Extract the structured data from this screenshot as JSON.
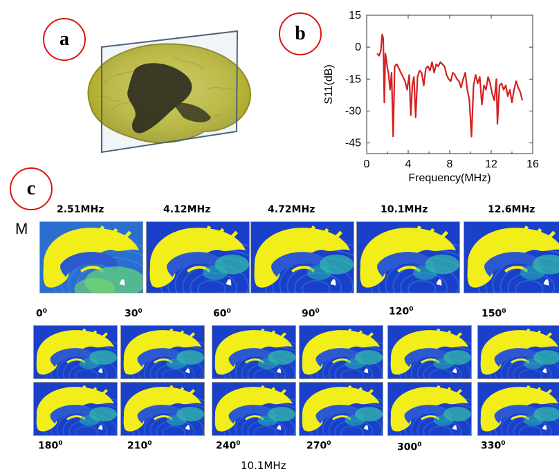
{
  "labels": {
    "a": "a",
    "b": "b",
    "c": "c"
  },
  "row_label": "M",
  "bottom_caption": "10.1MHz",
  "frequencies": [
    "2.51MHz",
    "4.12MHz",
    "4.72MHz",
    "10.1MHz",
    "12.6MHz"
  ],
  "angles_top": [
    {
      "num": "0",
      "deg": "0"
    },
    {
      "num": "30",
      "deg": "0"
    },
    {
      "num": "60",
      "deg": "0"
    },
    {
      "num": "90",
      "deg": "0"
    },
    {
      "num": "120",
      "deg": "0"
    },
    {
      "num": "150",
      "deg": "0"
    }
  ],
  "angles_bottom": [
    {
      "num": "180",
      "deg": "0"
    },
    {
      "num": "210",
      "deg": "0"
    },
    {
      "num": "240",
      "deg": "0"
    },
    {
      "num": "270",
      "deg": "0"
    },
    {
      "num": "300",
      "deg": "0"
    },
    {
      "num": "330",
      "deg": "0"
    }
  ],
  "colors": {
    "circle": "#e01010",
    "line": "#d42020",
    "field_bg": "#1a3fc8",
    "tissue": "#f2ee1a"
  },
  "chart_data": {
    "type": "line",
    "xlabel": "Frequency(MHz)",
    "ylabel": "S11(dB)",
    "xlim": [
      0,
      16
    ],
    "ylim": [
      -50,
      15
    ],
    "xticks": [
      0,
      4,
      8,
      12,
      16
    ],
    "yticks": [
      15,
      0,
      -15,
      -30,
      -45
    ],
    "series": [
      {
        "x": [
          1.0,
          1.2,
          1.35,
          1.5,
          1.6,
          1.7,
          1.8,
          1.9,
          2.0,
          2.1,
          2.25,
          2.4,
          2.55,
          2.7,
          2.9,
          3.1,
          3.3,
          3.5,
          3.7,
          3.9,
          4.1,
          4.25,
          4.4,
          4.55,
          4.72,
          4.9,
          5.1,
          5.3,
          5.5,
          5.7,
          5.9,
          6.1,
          6.3,
          6.5,
          6.7,
          6.9,
          7.1,
          7.3,
          7.5,
          7.7,
          7.9,
          8.1,
          8.3,
          8.5,
          8.7,
          8.9,
          9.1,
          9.3,
          9.5,
          9.7,
          9.9,
          10.1,
          10.3,
          10.5,
          10.7,
          10.9,
          11.1,
          11.3,
          11.5,
          11.7,
          11.9,
          12.1,
          12.3,
          12.5,
          12.6,
          12.8,
          13.0,
          13.2,
          13.4,
          13.6,
          13.8,
          14.0,
          14.2,
          14.4,
          14.6,
          14.8,
          15.0
        ],
        "y": [
          -3,
          -4,
          -2,
          6,
          4,
          -26,
          -3,
          -6,
          -10,
          -12,
          -20,
          -12,
          -42,
          -9,
          -8,
          -10,
          -12,
          -14,
          -16,
          -20,
          -13,
          -32,
          -18,
          -14,
          -33,
          -14,
          -11,
          -12,
          -18,
          -10,
          -9,
          -11,
          -7,
          -12,
          -8,
          -9,
          -7,
          -8,
          -9,
          -13,
          -15,
          -16,
          -12,
          -13,
          -15,
          -16,
          -19,
          -15,
          -12,
          -20,
          -25,
          -42,
          -18,
          -13,
          -17,
          -14,
          -27,
          -18,
          -20,
          -14,
          -17,
          -22,
          -25,
          -15,
          -36,
          -18,
          -17,
          -20,
          -18,
          -23,
          -20,
          -26,
          -20,
          -16,
          -19,
          -21,
          -25
        ]
      }
    ]
  }
}
